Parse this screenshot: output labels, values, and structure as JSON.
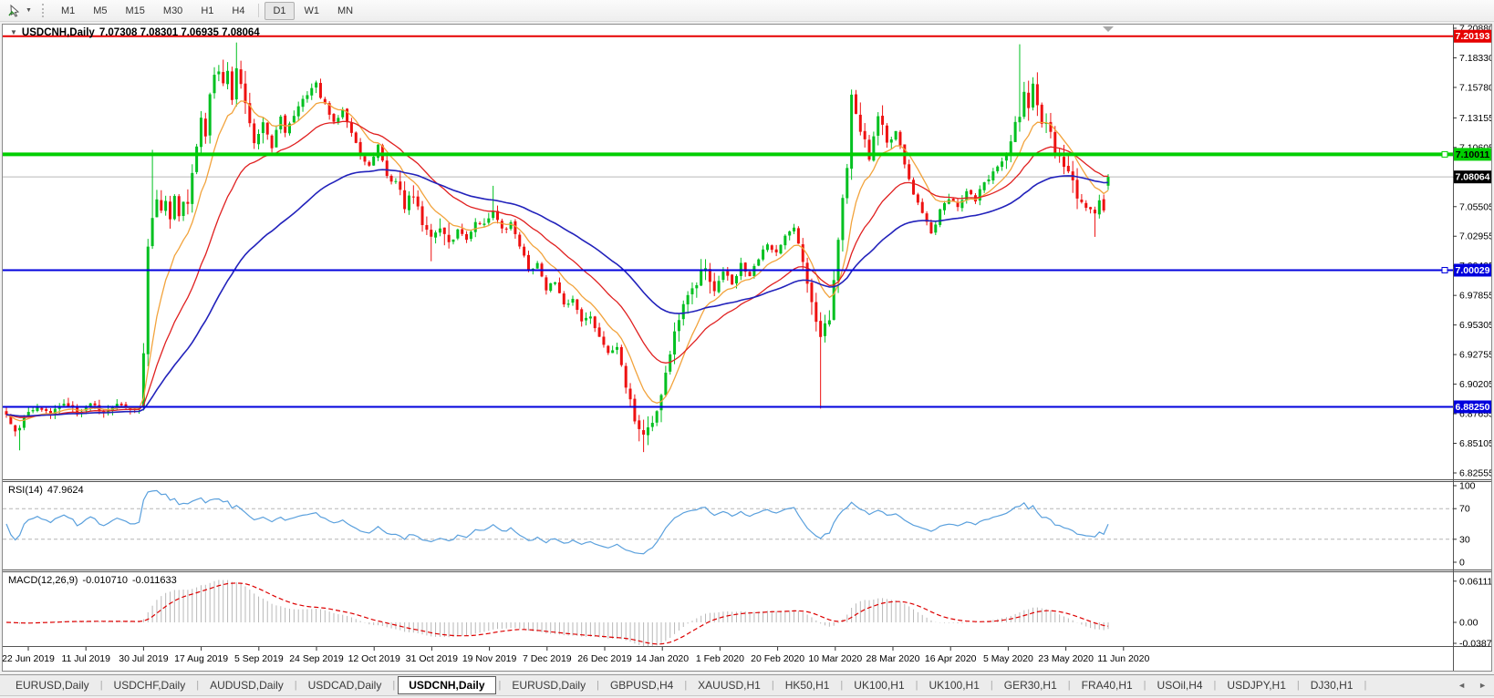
{
  "toolbar": {
    "dropdown_caret": "▼",
    "timeframes": [
      "M1",
      "M5",
      "M15",
      "M30",
      "H1",
      "H4",
      "D1",
      "W1",
      "MN"
    ],
    "active_timeframe": "D1"
  },
  "chart": {
    "caret": "▼",
    "symbol": "USDCNH,Daily",
    "ohlc_text": "7.07308 7.08301 7.06935 7.08064"
  },
  "chart_data": {
    "type": "candlestick",
    "symbol": "USDCNH",
    "timeframe": "Daily",
    "last_ohlc": {
      "o": 7.07308,
      "h": 7.08301,
      "l": 7.06935,
      "c": 7.08064
    },
    "price_axis_labels": [
      "7.20880",
      "7.18330",
      "7.15780",
      "7.13155",
      "7.10605",
      "7.08055",
      "7.05505",
      "7.02955",
      "7.00405",
      "6.97855",
      "6.95305",
      "6.92755",
      "6.90205",
      "6.87655",
      "6.85105",
      "6.82555"
    ],
    "date_labels": [
      "22 Jun 2019",
      "11 Jul 2019",
      "30 Jul 2019",
      "17 Aug 2019",
      "5 Sep 2019",
      "24 Sep 2019",
      "12 Oct 2019",
      "31 Oct 2019",
      "19 Nov 2019",
      "7 Dec 2019",
      "26 Dec 2019",
      "14 Jan 2020",
      "1 Feb 2020",
      "20 Feb 2020",
      "10 Mar 2020",
      "28 Mar 2020",
      "16 Apr 2020",
      "5 May 2020",
      "23 May 2020",
      "11 Jun 2020"
    ],
    "horizontal_lines": [
      {
        "price": 7.20193,
        "label": "7.20193",
        "color": "#e60000",
        "width": 2,
        "handle": false,
        "text_color": "#ffffff"
      },
      {
        "price": 7.10011,
        "label": "7.10011",
        "color": "#00ce00",
        "width": 4,
        "handle": true,
        "text_color": "#000000"
      },
      {
        "price": 7.00029,
        "label": "7.00029",
        "color": "#0000dd",
        "width": 2,
        "handle": true,
        "text_color": "#ffffff"
      },
      {
        "price": 6.8825,
        "label": "6.88250",
        "color": "#0000dd",
        "width": 2,
        "handle": false,
        "text_color": "#ffffff"
      }
    ],
    "current_price": {
      "value": 7.08064,
      "label": "7.08064",
      "line_color": "#b8b8b8",
      "box_color": "#000000",
      "text_color": "#ffffff"
    },
    "moving_averages": [
      {
        "name": "fast",
        "period": 10,
        "color": "#f2a33c"
      },
      {
        "name": "medium",
        "period": 25,
        "color": "#e02020"
      },
      {
        "name": "slow",
        "period": 55,
        "color": "#2222bb"
      }
    ],
    "candles": {
      "bars": 250,
      "up_color": "#00c020",
      "down_color": "#ee1111"
    },
    "price_path_anchors": [
      [
        0,
        6.878
      ],
      [
        2,
        6.86
      ],
      [
        4,
        6.872
      ],
      [
        7,
        6.884
      ],
      [
        10,
        6.877
      ],
      [
        13,
        6.886
      ],
      [
        16,
        6.878
      ],
      [
        19,
        6.885
      ],
      [
        22,
        6.878
      ],
      [
        25,
        6.884
      ],
      [
        28,
        6.879
      ],
      [
        30,
        6.883
      ],
      [
        31,
        6.925
      ],
      [
        32,
        7.022
      ],
      [
        33,
        7.046
      ],
      [
        34,
        7.06
      ],
      [
        35,
        7.047
      ],
      [
        36,
        7.058
      ],
      [
        37,
        7.041
      ],
      [
        38,
        7.06
      ],
      [
        39,
        7.049
      ],
      [
        40,
        7.062
      ],
      [
        41,
        7.054
      ],
      [
        42,
        7.084
      ],
      [
        43,
        7.104
      ],
      [
        44,
        7.128
      ],
      [
        45,
        7.114
      ],
      [
        46,
        7.15
      ],
      [
        47,
        7.164
      ],
      [
        48,
        7.172
      ],
      [
        49,
        7.157
      ],
      [
        50,
        7.168
      ],
      [
        51,
        7.149
      ],
      [
        52,
        7.178
      ],
      [
        53,
        7.161
      ],
      [
        54,
        7.147
      ],
      [
        55,
        7.127
      ],
      [
        56,
        7.111
      ],
      [
        57,
        7.122
      ],
      [
        58,
        7.131
      ],
      [
        59,
        7.117
      ],
      [
        60,
        7.107
      ],
      [
        61,
        7.121
      ],
      [
        62,
        7.132
      ],
      [
        63,
        7.117
      ],
      [
        64,
        7.125
      ],
      [
        66,
        7.142
      ],
      [
        68,
        7.151
      ],
      [
        70,
        7.162
      ],
      [
        71,
        7.149
      ],
      [
        72,
        7.144
      ],
      [
        74,
        7.127
      ],
      [
        76,
        7.139
      ],
      [
        78,
        7.117
      ],
      [
        80,
        7.099
      ],
      [
        82,
        7.092
      ],
      [
        84,
        7.107
      ],
      [
        86,
        7.081
      ],
      [
        88,
        7.072
      ],
      [
        90,
        7.057
      ],
      [
        92,
        7.067
      ],
      [
        94,
        7.041
      ],
      [
        96,
        7.027
      ],
      [
        98,
        7.037
      ],
      [
        100,
        7.021
      ],
      [
        102,
        7.035
      ],
      [
        104,
        7.027
      ],
      [
        106,
        7.043
      ],
      [
        108,
        7.039
      ],
      [
        110,
        7.051
      ],
      [
        112,
        7.034
      ],
      [
        114,
        7.041
      ],
      [
        116,
        7.021
      ],
      [
        118,
        7.001
      ],
      [
        120,
        7.005
      ],
      [
        122,
        6.985
      ],
      [
        124,
        6.991
      ],
      [
        126,
        6.971
      ],
      [
        128,
        6.975
      ],
      [
        130,
        6.954
      ],
      [
        132,
        6.961
      ],
      [
        134,
        6.943
      ],
      [
        136,
        6.929
      ],
      [
        138,
        6.935
      ],
      [
        140,
        6.901
      ],
      [
        142,
        6.875
      ],
      [
        144,
        6.855
      ],
      [
        146,
        6.871
      ],
      [
        148,
        6.895
      ],
      [
        150,
        6.931
      ],
      [
        152,
        6.961
      ],
      [
        154,
        6.975
      ],
      [
        156,
        6.991
      ],
      [
        158,
        7.001
      ],
      [
        160,
        6.985
      ],
      [
        162,
        6.999
      ],
      [
        164,
        6.989
      ],
      [
        166,
        7.005
      ],
      [
        168,
        6.995
      ],
      [
        170,
        7.011
      ],
      [
        172,
        7.021
      ],
      [
        174,
        7.015
      ],
      [
        176,
        7.031
      ],
      [
        178,
        7.039
      ],
      [
        180,
        7.011
      ],
      [
        182,
        6.975
      ],
      [
        184,
        6.939
      ],
      [
        186,
        6.961
      ],
      [
        188,
        7.029
      ],
      [
        190,
        7.091
      ],
      [
        191,
        7.151
      ],
      [
        193,
        7.121
      ],
      [
        195,
        7.099
      ],
      [
        197,
        7.131
      ],
      [
        199,
        7.111
      ],
      [
        201,
        7.121
      ],
      [
        203,
        7.091
      ],
      [
        205,
        7.065
      ],
      [
        207,
        7.049
      ],
      [
        209,
        7.031
      ],
      [
        211,
        7.051
      ],
      [
        213,
        7.061
      ],
      [
        215,
        7.055
      ],
      [
        217,
        7.069
      ],
      [
        219,
        7.061
      ],
      [
        221,
        7.075
      ],
      [
        223,
        7.085
      ],
      [
        225,
        7.095
      ],
      [
        227,
        7.115
      ],
      [
        229,
        7.135
      ],
      [
        230,
        7.151
      ],
      [
        231,
        7.145
      ],
      [
        232,
        7.157
      ],
      [
        233,
        7.145
      ],
      [
        234,
        7.131
      ],
      [
        236,
        7.115
      ],
      [
        238,
        7.095
      ],
      [
        240,
        7.081
      ],
      [
        242,
        7.065
      ],
      [
        244,
        7.055
      ],
      [
        246,
        7.047
      ],
      [
        247,
        7.061
      ],
      [
        248,
        7.051
      ],
      [
        249,
        7.081
      ]
    ],
    "special_wicks": [
      [
        3,
        "low",
        6.845
      ],
      [
        33,
        "high",
        7.104
      ],
      [
        52,
        "high",
        7.1965
      ],
      [
        96,
        "low",
        7.008
      ],
      [
        110,
        "high",
        7.073
      ],
      [
        144,
        "low",
        6.8435
      ],
      [
        184,
        "low",
        6.881
      ],
      [
        229,
        "high",
        7.195
      ],
      [
        246,
        "low",
        7.029
      ]
    ],
    "volatile_ranges": [
      [
        31,
        58
      ],
      [
        88,
        100
      ],
      [
        140,
        160
      ],
      [
        180,
        200
      ],
      [
        225,
        242
      ]
    ],
    "rsi": {
      "label": "RSI(14)",
      "value": "47.9624",
      "period": 14,
      "color": "#5aa0dd",
      "axis_labels": [
        "100",
        "70",
        "30",
        "0"
      ],
      "level_lines": [
        70,
        30
      ]
    },
    "macd": {
      "label": "MACD(12,26,9)",
      "value_main": "-0.010710",
      "value_signal": "-0.011633",
      "hist_color": "#b8b8b8",
      "signal_color": "#dd0000",
      "axis_labels": [
        "0.061119",
        "0.00",
        "-0.038777"
      ]
    }
  },
  "tabs": {
    "items": [
      "EURUSD,Daily",
      "USDCHF,Daily",
      "AUDUSD,Daily",
      "USDCAD,Daily",
      "USDCNH,Daily",
      "EURUSD,Daily",
      "GBPUSD,H4",
      "XAUUSD,H1",
      "HK50,H1",
      "UK100,H1",
      "UK100,H1",
      "GER30,H1",
      "FRA40,H1",
      "USOil,H4",
      "USDJPY,H1",
      "DJ30,H1"
    ],
    "active_index": 4,
    "nav_left": "◄",
    "nav_right": "►"
  }
}
